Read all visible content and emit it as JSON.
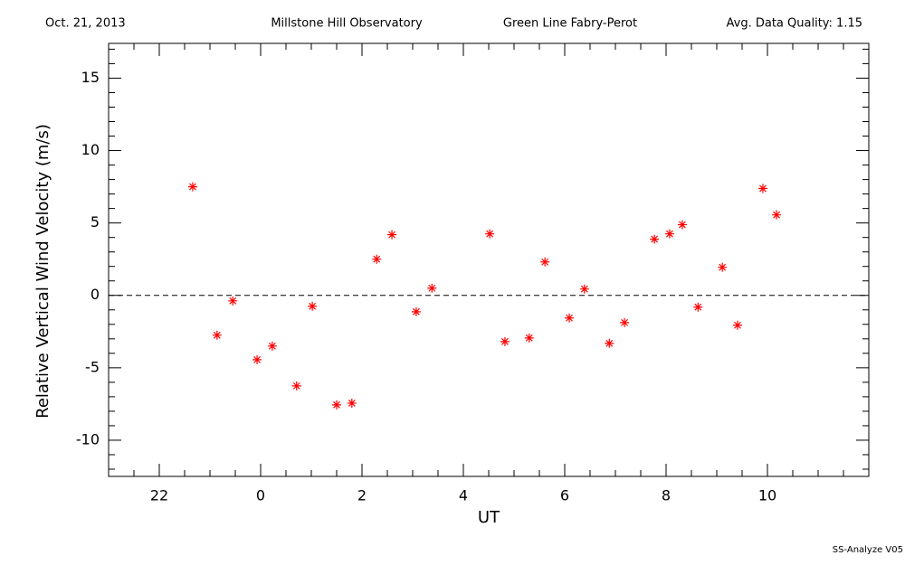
{
  "chart_data": {
    "type": "scatter",
    "header": {
      "date": "Oct. 21, 2013",
      "site": "Millstone Hill Observatory",
      "instrument": "Green Line Fabry-Perot",
      "quality": "Avg. Data Quality: 1.15"
    },
    "footer": "SS-Analyze V05",
    "x_label": "UT",
    "y_label": "Relative Vertical Wind Velocity (m/s)",
    "series": [
      {
        "color": "#ff0000",
        "x": [
          -1.34,
          -0.86,
          -0.55,
          -0.07,
          0.23,
          0.71,
          1.02,
          1.5,
          1.8,
          2.29,
          2.59,
          3.07,
          3.38,
          4.52,
          4.82,
          5.3,
          5.61,
          6.09,
          6.39,
          6.88,
          7.18,
          7.77,
          8.07,
          8.32,
          8.63,
          9.11,
          9.41,
          9.91,
          10.18
        ],
        "values": [
          7.5,
          -2.75,
          -0.38,
          -4.44,
          -3.5,
          -6.25,
          -0.75,
          -7.56,
          -7.44,
          2.5,
          4.19,
          -1.13,
          0.5,
          4.25,
          -3.19,
          -2.94,
          2.31,
          -1.56,
          0.44,
          -3.31,
          -1.88,
          3.88,
          4.25,
          4.88,
          -0.81,
          1.94,
          -2.06,
          7.38,
          5.56
        ]
      }
    ],
    "xlim": [
      -3,
      12
    ],
    "ylim": [
      -12.5,
      17.4
    ],
    "xticks": [
      {
        "value": -2,
        "label": "22"
      },
      0,
      2,
      4,
      6,
      8,
      10
    ],
    "yticks": [
      -10,
      -5,
      0,
      5,
      10,
      15
    ],
    "xminorticks": [
      -2.5,
      -1.5,
      -1,
      -0.5,
      0.5,
      1,
      1.5,
      2.5,
      3,
      3.5,
      4.5,
      5,
      5.5,
      6.5,
      7,
      7.5,
      8.5,
      9,
      9.5,
      10.5,
      11,
      11.5
    ],
    "yminorticks": [
      -12,
      -11,
      -9,
      -8,
      -7,
      -6,
      -4,
      -3,
      -2,
      -1,
      1,
      2,
      3,
      4,
      6,
      7,
      8,
      9,
      11,
      12,
      13,
      14,
      16,
      17
    ],
    "reference_line": 0
  }
}
